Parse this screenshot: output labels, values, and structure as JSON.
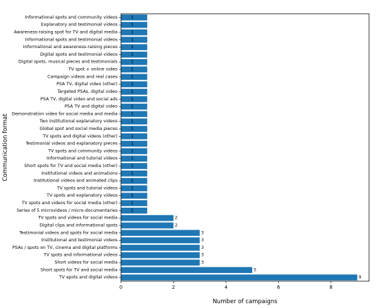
{
  "chart_data": {
    "type": "bar",
    "orientation": "horizontal",
    "categories": [
      "TV spots and digital videos",
      "Short spots for TV and social media",
      "Short videos for social media",
      "TV spots and informational videos",
      "PSAs / spots on TV, cinema and digital platforms",
      "Institutional and testimonial videos",
      "Testimonial videos and spots for social media",
      "Digital clips and informational spots",
      "TV spots and videos for social media",
      "Series of 5 microvideos / micro-documentaries",
      "TV spots and videos for social media (other)",
      "TV spots and explanatory videos",
      "TV spots and tutorial videos",
      "Institutional videos and animated clips",
      "Institutional videos and animations",
      "Short spots for TV and social media (other)",
      "Informational and tutorial videos",
      "TV spots and community videos",
      "Testimonial videos and explanatory pieces",
      "TV spots and digital videos (other)",
      "Global spot and social media pieces",
      "Two institutional explanatory videos",
      "Demonstration video for social media and media",
      "PSA TV and digital video",
      "PSA TV, digital video and social ads",
      "Targeted PSAs, digital video",
      "PSA TV, digital video (other)",
      "Campaign videos and real cases",
      "TV spot + online video",
      "Digital spots, musical pieces and testimonials",
      "Digital spots and testimonial videos",
      "Informational and awareness-raising pieces",
      "Informational spots and testimonial videos",
      "Awareness-raising spot for TV and digital media",
      "Explanatory and testimonial videos",
      "Informational spots and community videos"
    ],
    "values": [
      9,
      5,
      3,
      3,
      3,
      3,
      3,
      2,
      2,
      1,
      1,
      1,
      1,
      1,
      1,
      1,
      1,
      1,
      1,
      1,
      1,
      1,
      1,
      1,
      1,
      1,
      1,
      1,
      1,
      1,
      1,
      1,
      1,
      1,
      1,
      1
    ],
    "xlabel": "Number of campaigns",
    "ylabel": "Communication format",
    "xlim": [
      0,
      9.45
    ],
    "xticks": [
      0,
      2,
      4,
      6,
      8
    ],
    "bar_color": "#1f77b4",
    "grid": false,
    "data_labels": true
  }
}
